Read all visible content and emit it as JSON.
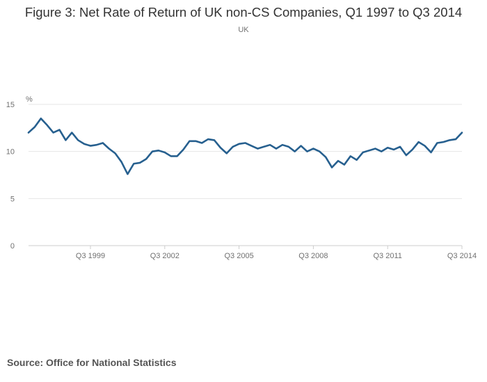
{
  "chart_data": {
    "type": "line",
    "title": "Figure 3: Net Rate of Return of UK non-CS Companies, Q1 1997 to Q3 2014",
    "subtitle": "UK",
    "ylabel": "%",
    "ylim": [
      0,
      15
    ],
    "yticks": [
      0,
      5,
      10,
      15
    ],
    "grid": true,
    "x_tick_labels": [
      "Q3 1999",
      "Q3 2002",
      "Q3 2005",
      "Q3 2008",
      "Q3 2011",
      "Q3 2014"
    ],
    "x_tick_index": [
      10,
      22,
      34,
      46,
      58,
      70
    ],
    "x": [
      "Q1 1997",
      "Q2 1997",
      "Q3 1997",
      "Q4 1997",
      "Q1 1998",
      "Q2 1998",
      "Q3 1998",
      "Q4 1998",
      "Q1 1999",
      "Q2 1999",
      "Q3 1999",
      "Q4 1999",
      "Q1 2000",
      "Q2 2000",
      "Q3 2000",
      "Q4 2000",
      "Q1 2001",
      "Q2 2001",
      "Q3 2001",
      "Q4 2001",
      "Q1 2002",
      "Q2 2002",
      "Q3 2002",
      "Q4 2002",
      "Q1 2003",
      "Q2 2003",
      "Q3 2003",
      "Q4 2003",
      "Q1 2004",
      "Q2 2004",
      "Q3 2004",
      "Q4 2004",
      "Q1 2005",
      "Q2 2005",
      "Q3 2005",
      "Q4 2005",
      "Q1 2006",
      "Q2 2006",
      "Q3 2006",
      "Q4 2006",
      "Q1 2007",
      "Q2 2007",
      "Q3 2007",
      "Q4 2007",
      "Q1 2008",
      "Q2 2008",
      "Q3 2008",
      "Q4 2008",
      "Q1 2009",
      "Q2 2009",
      "Q3 2009",
      "Q4 2009",
      "Q1 2010",
      "Q2 2010",
      "Q3 2010",
      "Q4 2010",
      "Q1 2011",
      "Q2 2011",
      "Q3 2011",
      "Q4 2011",
      "Q1 2012",
      "Q2 2012",
      "Q3 2012",
      "Q4 2012",
      "Q1 2013",
      "Q2 2013",
      "Q3 2013",
      "Q4 2013",
      "Q1 2014",
      "Q2 2014",
      "Q3 2014"
    ],
    "series": [
      {
        "color": "#27608f",
        "values": [
          12.0,
          12.6,
          13.5,
          12.8,
          12.0,
          12.3,
          11.2,
          12.0,
          11.2,
          10.8,
          10.6,
          10.7,
          10.9,
          10.3,
          9.8,
          8.9,
          7.6,
          8.7,
          8.8,
          9.2,
          10.0,
          10.1,
          9.9,
          9.5,
          9.5,
          10.2,
          11.1,
          11.1,
          10.9,
          11.3,
          11.2,
          10.4,
          9.8,
          10.5,
          10.8,
          10.9,
          10.6,
          10.3,
          10.5,
          10.7,
          10.3,
          10.7,
          10.5,
          10.0,
          10.6,
          10.0,
          10.3,
          10.0,
          9.4,
          8.3,
          9.0,
          8.6,
          9.5,
          9.1,
          9.9,
          10.1,
          10.3,
          10.0,
          10.4,
          10.2,
          10.5,
          9.6,
          10.2,
          11.0,
          10.6,
          9.9,
          10.9,
          11.0,
          11.2,
          11.3,
          12.0
        ]
      }
    ]
  },
  "source": "Source: Office for National Statistics"
}
